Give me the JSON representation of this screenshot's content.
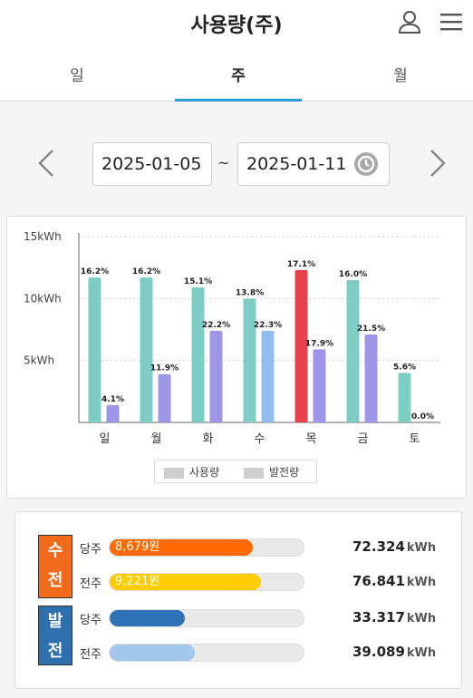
{
  "header": {
    "title": "사용량(주)",
    "user_icon": "user-icon",
    "menu_icon": "hamburger-menu-icon"
  },
  "tabs": [
    {
      "label": "일",
      "active": false
    },
    {
      "label": "주",
      "active": true
    },
    {
      "label": "월",
      "active": false
    }
  ],
  "date_range": {
    "start": "2025-01-05",
    "separator": "~",
    "end": "2025-01-11",
    "prev_icon": "chevron-left-icon",
    "next_icon": "chevron-right-icon",
    "calendar_icon": "clock-icon"
  },
  "chart_data": {
    "type": "bar",
    "categories": [
      "일",
      "월",
      "화",
      "수",
      "목",
      "금",
      "토"
    ],
    "y_ticks": [
      "15kWh",
      "10kWh",
      "5kWh"
    ],
    "ylim": [
      0,
      15
    ],
    "tick_values": [
      15,
      10,
      5
    ],
    "grid": true,
    "series": [
      {
        "name": "사용량",
        "values": [
          11.7,
          11.7,
          10.9,
          10.0,
          12.3,
          11.5,
          4.0
        ],
        "labels": [
          "16.2%",
          "16.2%",
          "15.1%",
          "13.8%",
          "17.1%",
          "16.0%",
          "5.6%"
        ],
        "color": "#7ecdc4",
        "highlight_index": 4,
        "highlight_color": "#e8414e"
      },
      {
        "name": "발전량",
        "values": [
          1.4,
          3.9,
          7.4,
          7.4,
          5.9,
          7.1,
          0.0
        ],
        "labels": [
          "4.1%",
          "11.9%",
          "22.2%",
          "22.3%",
          "17.9%",
          "21.5%",
          "0.0%"
        ],
        "color": "#9d95e6",
        "highlight_index": 3,
        "highlight_color": "#92bdf0"
      }
    ],
    "legend": [
      "사용량",
      "발전량"
    ]
  },
  "summary": {
    "receive_group": {
      "label_chars": [
        "수",
        "전"
      ],
      "color": "#f26a1b"
    },
    "generation_group": {
      "label_chars": [
        "발",
        "전"
      ],
      "color": "#2e6fad"
    },
    "rows": [
      {
        "label": "당주",
        "bar_text": "8,679원",
        "fill": 0.74,
        "color": "#ff6a00",
        "value": "72.324",
        "unit": "kWh"
      },
      {
        "label": "전주",
        "bar_text": "9,221원",
        "fill": 0.78,
        "color": "#ffcc00",
        "value": "76.841",
        "unit": "kWh"
      },
      {
        "label": "당주",
        "bar_text": "",
        "fill": 0.39,
        "color": "#2e72b8",
        "value": "33.317",
        "unit": "kWh"
      },
      {
        "label": "전주",
        "bar_text": "",
        "fill": 0.44,
        "color": "#a3c7ea",
        "value": "39.089",
        "unit": "kWh"
      }
    ]
  }
}
